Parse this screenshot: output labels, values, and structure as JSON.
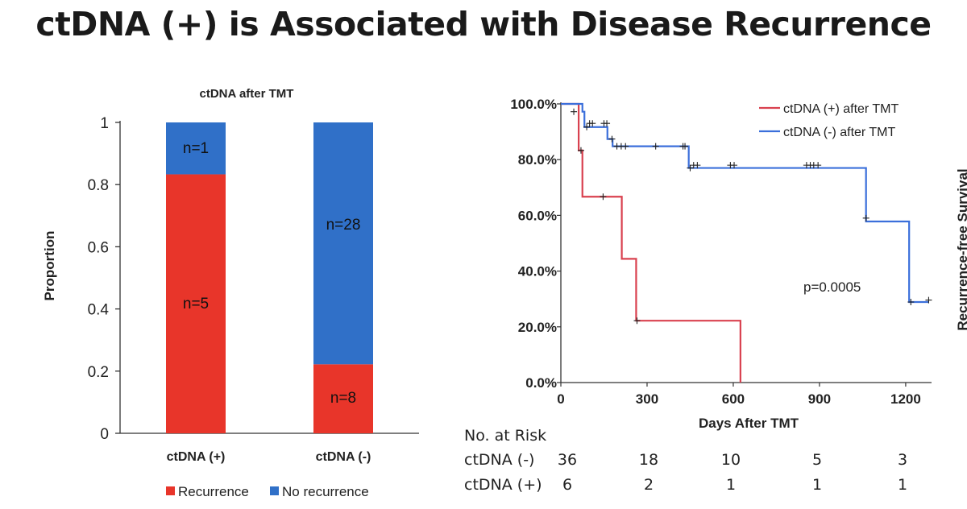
{
  "title": "ctDNA (+) is Associated with Disease Recurrence",
  "colors": {
    "recurrence": "#E8352A",
    "no_recurrence": "#3070C8",
    "km_pos": "#D9414F",
    "km_neg": "#3B6FDB"
  },
  "chart_data": [
    {
      "type": "bar",
      "stacked": true,
      "title": "ctDNA after TMT",
      "xlabel": "",
      "ylabel": "Proportion",
      "ylim": [
        0,
        1
      ],
      "yticks": [
        "0",
        "0.2",
        "0.4",
        "0.6",
        "0.8",
        "1"
      ],
      "categories": [
        "ctDNA (+)",
        "ctDNA (-)"
      ],
      "series": [
        {
          "name": "Recurrence",
          "values": [
            0.833,
            0.222
          ],
          "labels": [
            "n=5",
            "n=8"
          ]
        },
        {
          "name": "No recurrence",
          "values": [
            0.167,
            0.778
          ],
          "labels": [
            "n=1",
            "n=28"
          ]
        }
      ],
      "legend": "bottom"
    },
    {
      "type": "line",
      "step": true,
      "title": "",
      "xlabel": "Days After TMT",
      "ylabel": "Recurrence-free Survival",
      "xlim": [
        0,
        1290
      ],
      "ylim": [
        0,
        1
      ],
      "xticks": [
        "0",
        "300",
        "600",
        "900",
        "1200"
      ],
      "yticks": [
        "0.0%",
        "20.0%",
        "40.0%",
        "60.0%",
        "80.0%",
        "100.0%"
      ],
      "annotation": "p=0.0005",
      "legend": "top-right",
      "series": [
        {
          "name": "ctDNA (+) after TMT",
          "x": [
            0,
            62,
            75,
            212,
            262,
            625
          ],
          "y": [
            1.0,
            0.833,
            0.667,
            0.444,
            0.222,
            0.0
          ],
          "censored": [
            [
              70,
              0.833
            ],
            [
              147,
              0.667
            ],
            [
              265,
              0.222
            ]
          ]
        },
        {
          "name": "ctDNA (-) after TMT",
          "x": [
            0,
            75,
            82,
            162,
            180,
            445,
            1062,
            1212,
            1280
          ],
          "y": [
            1.0,
            0.972,
            0.917,
            0.874,
            0.848,
            0.77,
            0.578,
            0.289,
            0.289
          ],
          "censored": [
            [
              45,
              0.972
            ],
            [
              90,
              0.917
            ],
            [
              100,
              0.93
            ],
            [
              110,
              0.93
            ],
            [
              150,
              0.93
            ],
            [
              160,
              0.93
            ],
            [
              178,
              0.874
            ],
            [
              195,
              0.848
            ],
            [
              210,
              0.848
            ],
            [
              225,
              0.848
            ],
            [
              330,
              0.848
            ],
            [
              425,
              0.848
            ],
            [
              432,
              0.848
            ],
            [
              450,
              0.77
            ],
            [
              462,
              0.78
            ],
            [
              475,
              0.78
            ],
            [
              590,
              0.78
            ],
            [
              603,
              0.78
            ],
            [
              855,
              0.78
            ],
            [
              868,
              0.78
            ],
            [
              880,
              0.78
            ],
            [
              895,
              0.78
            ],
            [
              1062,
              0.59
            ],
            [
              1218,
              0.289
            ],
            [
              1280,
              0.296
            ]
          ]
        }
      ]
    }
  ],
  "risk_table": {
    "header": "No. at Risk",
    "rows": [
      {
        "label": "ctDNA (-)",
        "values": [
          "36",
          "18",
          "10",
          "5",
          "3"
        ]
      },
      {
        "label": "ctDNA (+)",
        "values": [
          "6",
          "2",
          "1",
          "1",
          "1"
        ]
      }
    ]
  }
}
